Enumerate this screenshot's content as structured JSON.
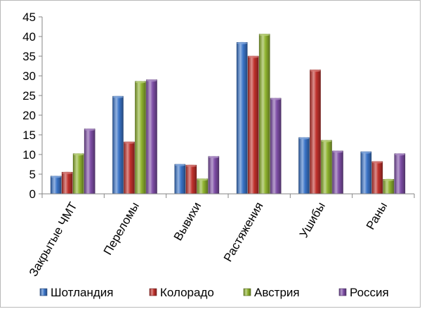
{
  "chart_data": {
    "type": "bar",
    "title": "",
    "xlabel": "",
    "ylabel": "",
    "ylim": [
      0,
      45
    ],
    "ytick_step": 5,
    "y_ticks": [
      "0",
      "5",
      "10",
      "15",
      "20",
      "25",
      "30",
      "35",
      "40",
      "45"
    ],
    "grid": false,
    "legend_position": "bottom",
    "categories": [
      "Закрытые ЧМТ",
      "Переломы",
      "Вывихи",
      "Растяжения",
      "Ушибы",
      "Раны"
    ],
    "series": [
      {
        "name": "Шотландия",
        "color": "#3a74c8",
        "values": [
          4.5,
          24.8,
          7.5,
          38.5,
          14.3,
          10.7
        ]
      },
      {
        "name": "Колорадо",
        "color": "#c0312c",
        "values": [
          5.5,
          13.2,
          7.3,
          35.0,
          31.5,
          8.2
        ]
      },
      {
        "name": "Австрия",
        "color": "#8fb32f",
        "values": [
          10.2,
          28.6,
          3.8,
          40.6,
          13.6,
          3.7
        ]
      },
      {
        "name": "Россия",
        "color": "#7e4ea6",
        "values": [
          16.5,
          29.0,
          9.5,
          24.3,
          10.9,
          10.2
        ]
      }
    ]
  }
}
